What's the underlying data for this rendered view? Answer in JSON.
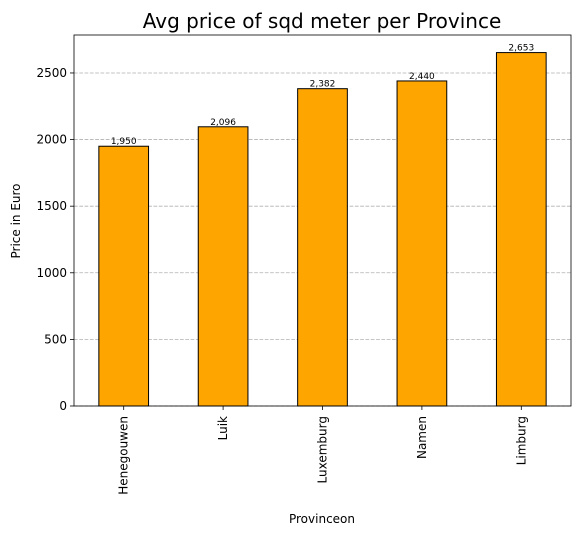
{
  "chart_data": {
    "type": "bar",
    "title": "Avg price of sqd meter per Province",
    "xlabel": "Provinceon",
    "ylabel": "Price in Euro",
    "categories": [
      "Henegouwen",
      "Luik",
      "Luxemburg",
      "Namen",
      "Limburg"
    ],
    "values": [
      1950,
      2096,
      2382,
      2440,
      2653
    ],
    "value_labels": [
      "1,950",
      "2,096",
      "2,382",
      "2,440",
      "2,653"
    ],
    "yticks": [
      0,
      500,
      1000,
      1500,
      2000,
      2500
    ],
    "ylim": [
      0,
      2785
    ],
    "grid": "y-axis, dashed",
    "bar_color": "#FFA500",
    "edge_color": "#000000"
  }
}
